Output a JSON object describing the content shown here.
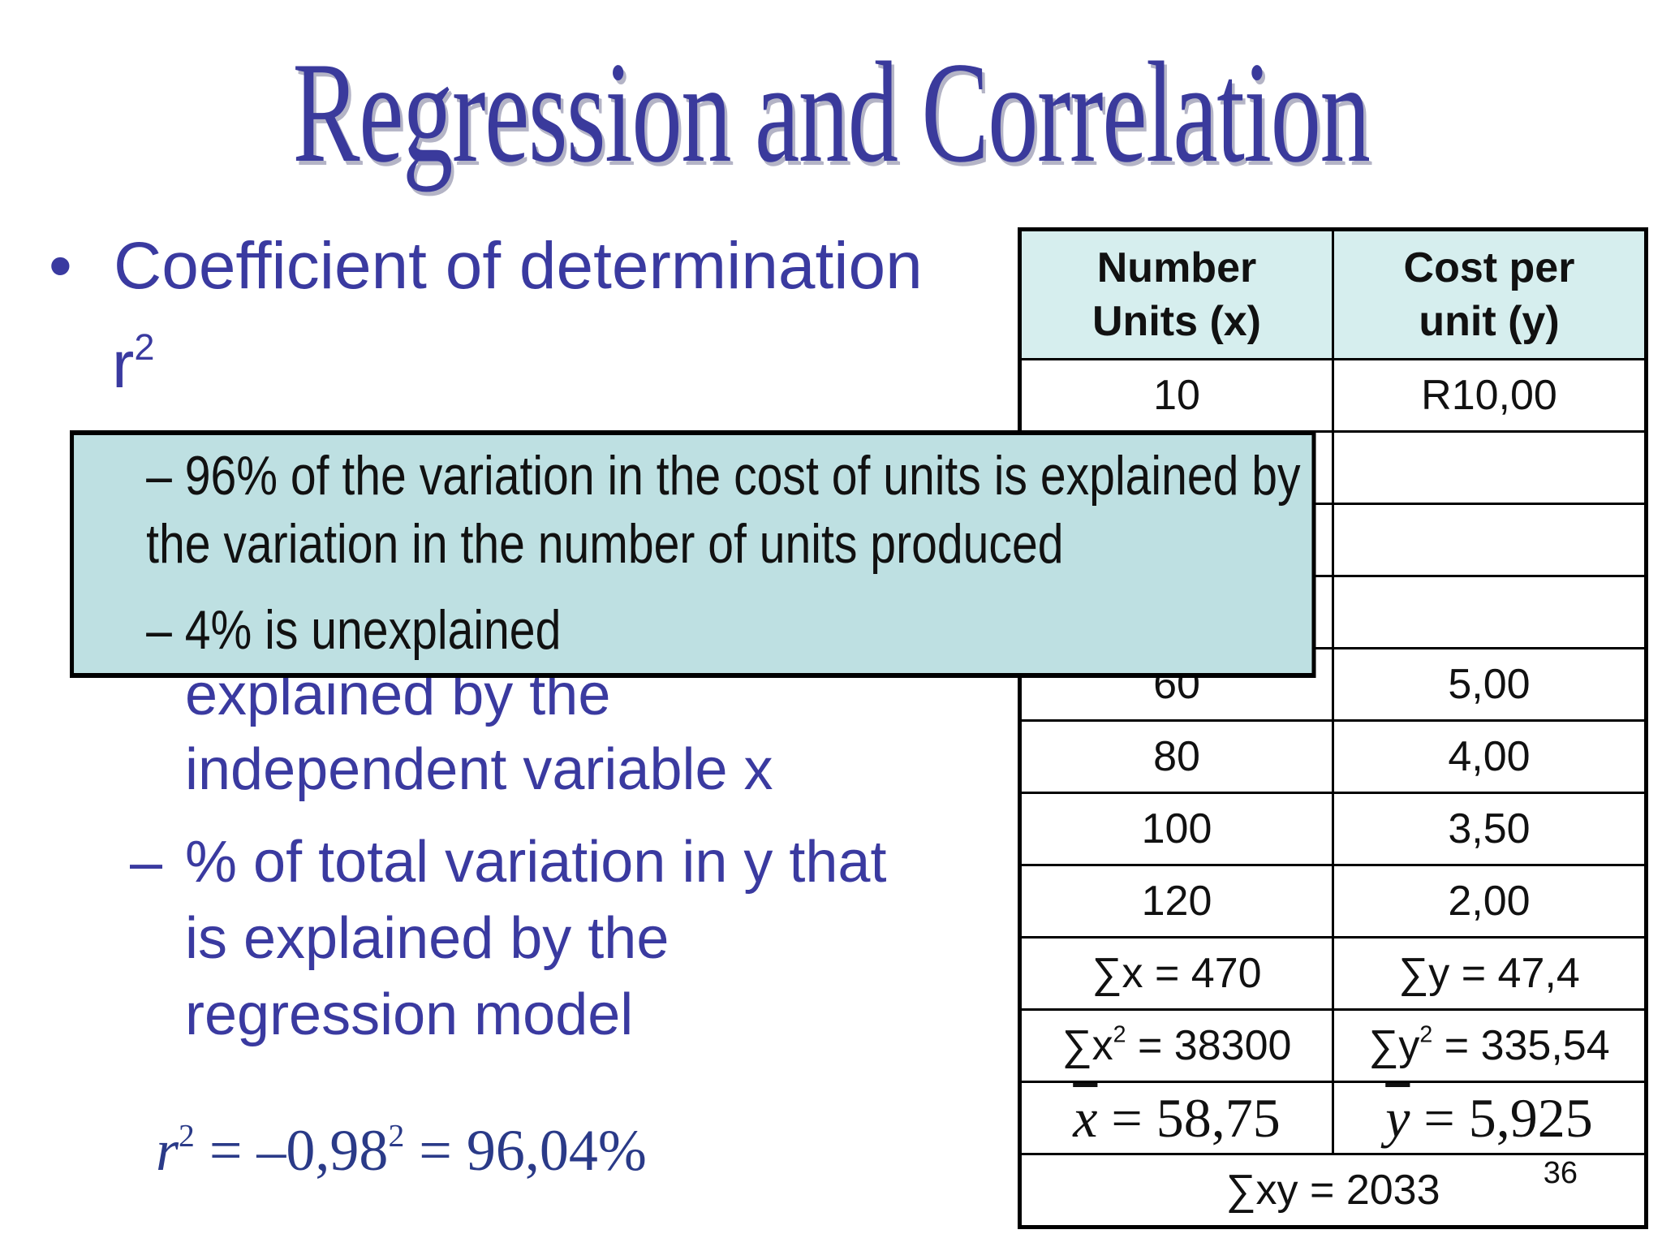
{
  "title": "Regression and Correlation",
  "bullet": {
    "marker": "•",
    "text": "Coefficient of determination",
    "r_symbol": "r",
    "r_exp": "2"
  },
  "sub_bullets": {
    "dash": "–",
    "line_explained": "explained by the",
    "line_independent": "independent variable x",
    "line_pct": "% of total variation in y that",
    "line_is_explained": "is explained by the",
    "line_model": "regression model"
  },
  "formula": {
    "lhs": "r",
    "lhs_exp": "2",
    "eq1": " = –0,98",
    "eq1_exp": "2",
    "eq2": " = 96,04%"
  },
  "table": {
    "headers": [
      {
        "line1": "Number",
        "line2": "Units (x)"
      },
      {
        "line1": "Cost per",
        "line2": "unit (y)"
      }
    ],
    "rows": [
      {
        "x": "10",
        "y": "R10,00"
      },
      {
        "x": "",
        "y": ""
      },
      {
        "x": "",
        "y": ""
      },
      {
        "x": "",
        "y": ""
      },
      {
        "x": "60",
        "y": "5,00"
      },
      {
        "x": "80",
        "y": "4,00"
      },
      {
        "x": "100",
        "y": "3,50"
      },
      {
        "x": "120",
        "y": "2,00"
      }
    ],
    "sum_x": "∑x = 470",
    "sum_y": "∑y = 47,4",
    "sum_x2_base": "∑x",
    "sum_x2_exp": "2",
    "sum_x2_val": " = 38300",
    "sum_y2_base": "∑y",
    "sum_y2_exp": "2",
    "sum_y2_val": " = 335,54",
    "mean_x_sym": "x",
    "mean_x_val": " = 58,75",
    "mean_y_sym": "y",
    "mean_y_val": " = 5,925",
    "sum_xy": "∑xy = 2033"
  },
  "page_number": "36",
  "popup": {
    "line1": "–  96% of the variation in the cost of units is explained by",
    "line2": "the variation in the number of units produced",
    "line3": "–  4% is unexplained"
  },
  "colors": {
    "title": "#3a3a9c",
    "bullet_text": "#3a3aa0",
    "header_fill": "#d6eeee",
    "popup_fill": "#bee0e2"
  }
}
